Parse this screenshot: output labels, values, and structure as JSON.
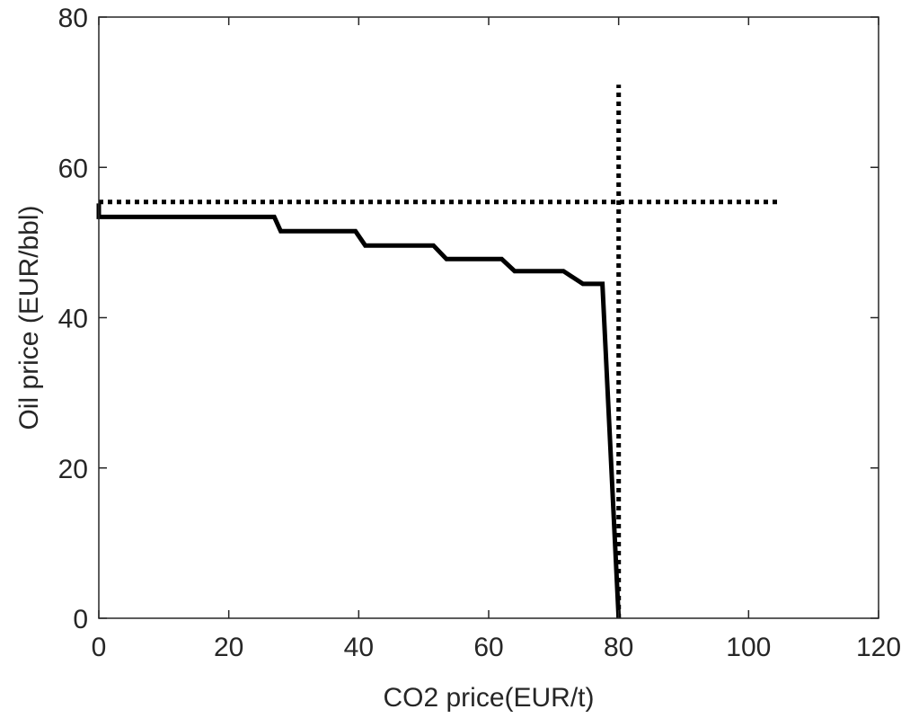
{
  "chart_data": {
    "type": "line",
    "title": "",
    "xlabel": "CO2 price(EUR/t)",
    "ylabel": "Oil price (EUR/bbl)",
    "xlim": [
      0,
      120
    ],
    "ylim": [
      0,
      80
    ],
    "xticks": [
      0,
      20,
      40,
      60,
      80,
      100,
      120
    ],
    "yticks": [
      0,
      20,
      40,
      60,
      80
    ],
    "grid": false,
    "legend": "none",
    "series": [
      {
        "style": "solid",
        "color": "#000000",
        "points": [
          [
            0,
            55.2
          ],
          [
            0,
            53.4
          ],
          [
            27,
            53.4
          ],
          [
            28,
            51.5
          ],
          [
            39.5,
            51.5
          ],
          [
            41,
            49.6
          ],
          [
            51.5,
            49.6
          ],
          [
            53.5,
            47.8
          ],
          [
            62,
            47.8
          ],
          [
            64,
            46.2
          ],
          [
            71.5,
            46.2
          ],
          [
            74.5,
            44.5
          ],
          [
            77.5,
            44.5
          ],
          [
            80,
            0
          ]
        ]
      },
      {
        "style": "dotted",
        "color": "#000000",
        "points": [
          [
            0,
            55.4
          ],
          [
            104.5,
            55.4
          ]
        ]
      },
      {
        "style": "dotted",
        "color": "#000000",
        "points": [
          [
            80,
            0
          ],
          [
            80,
            71
          ]
        ]
      }
    ]
  }
}
